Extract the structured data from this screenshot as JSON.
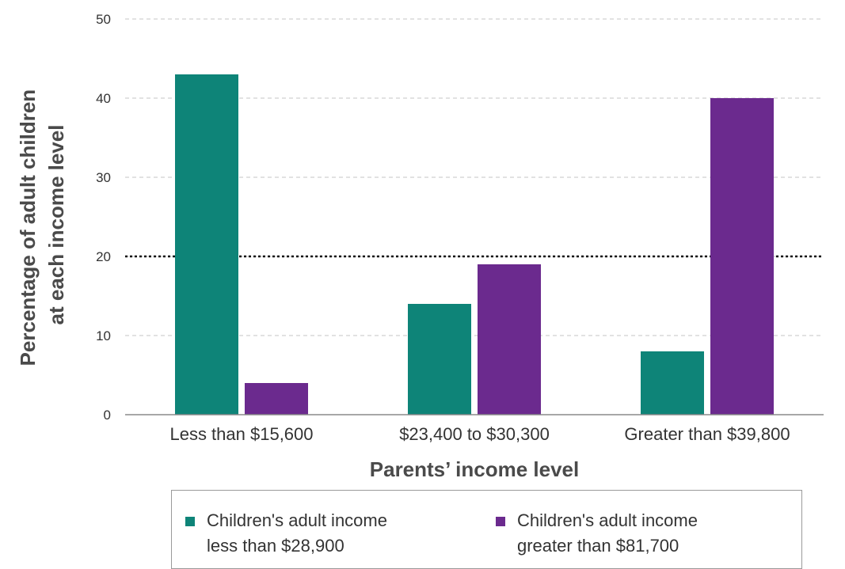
{
  "chart_data": {
    "type": "bar",
    "title": "",
    "xlabel": "Parents’ income level",
    "ylabel_lines": [
      "Percentage of adult children",
      "at each income level"
    ],
    "categories": [
      "Less than $15,600",
      "$23,400 to $30,300",
      "Greater than $39,800"
    ],
    "series": [
      {
        "name_lines": [
          "Children's adult income",
          "less than $28,900"
        ],
        "color": "#0e8478",
        "values": [
          43,
          14,
          8
        ]
      },
      {
        "name_lines": [
          "Children's adult income",
          "greater than $81,700"
        ],
        "color": "#6b2a8e",
        "values": [
          4,
          19,
          40
        ]
      }
    ],
    "ylim": [
      0,
      50
    ],
    "yticks": [
      0,
      10,
      20,
      30,
      40,
      50
    ],
    "grid": true,
    "reference_line": {
      "y": 20,
      "style": "dotted",
      "color": "#111111"
    },
    "legend_position": "bottom"
  }
}
